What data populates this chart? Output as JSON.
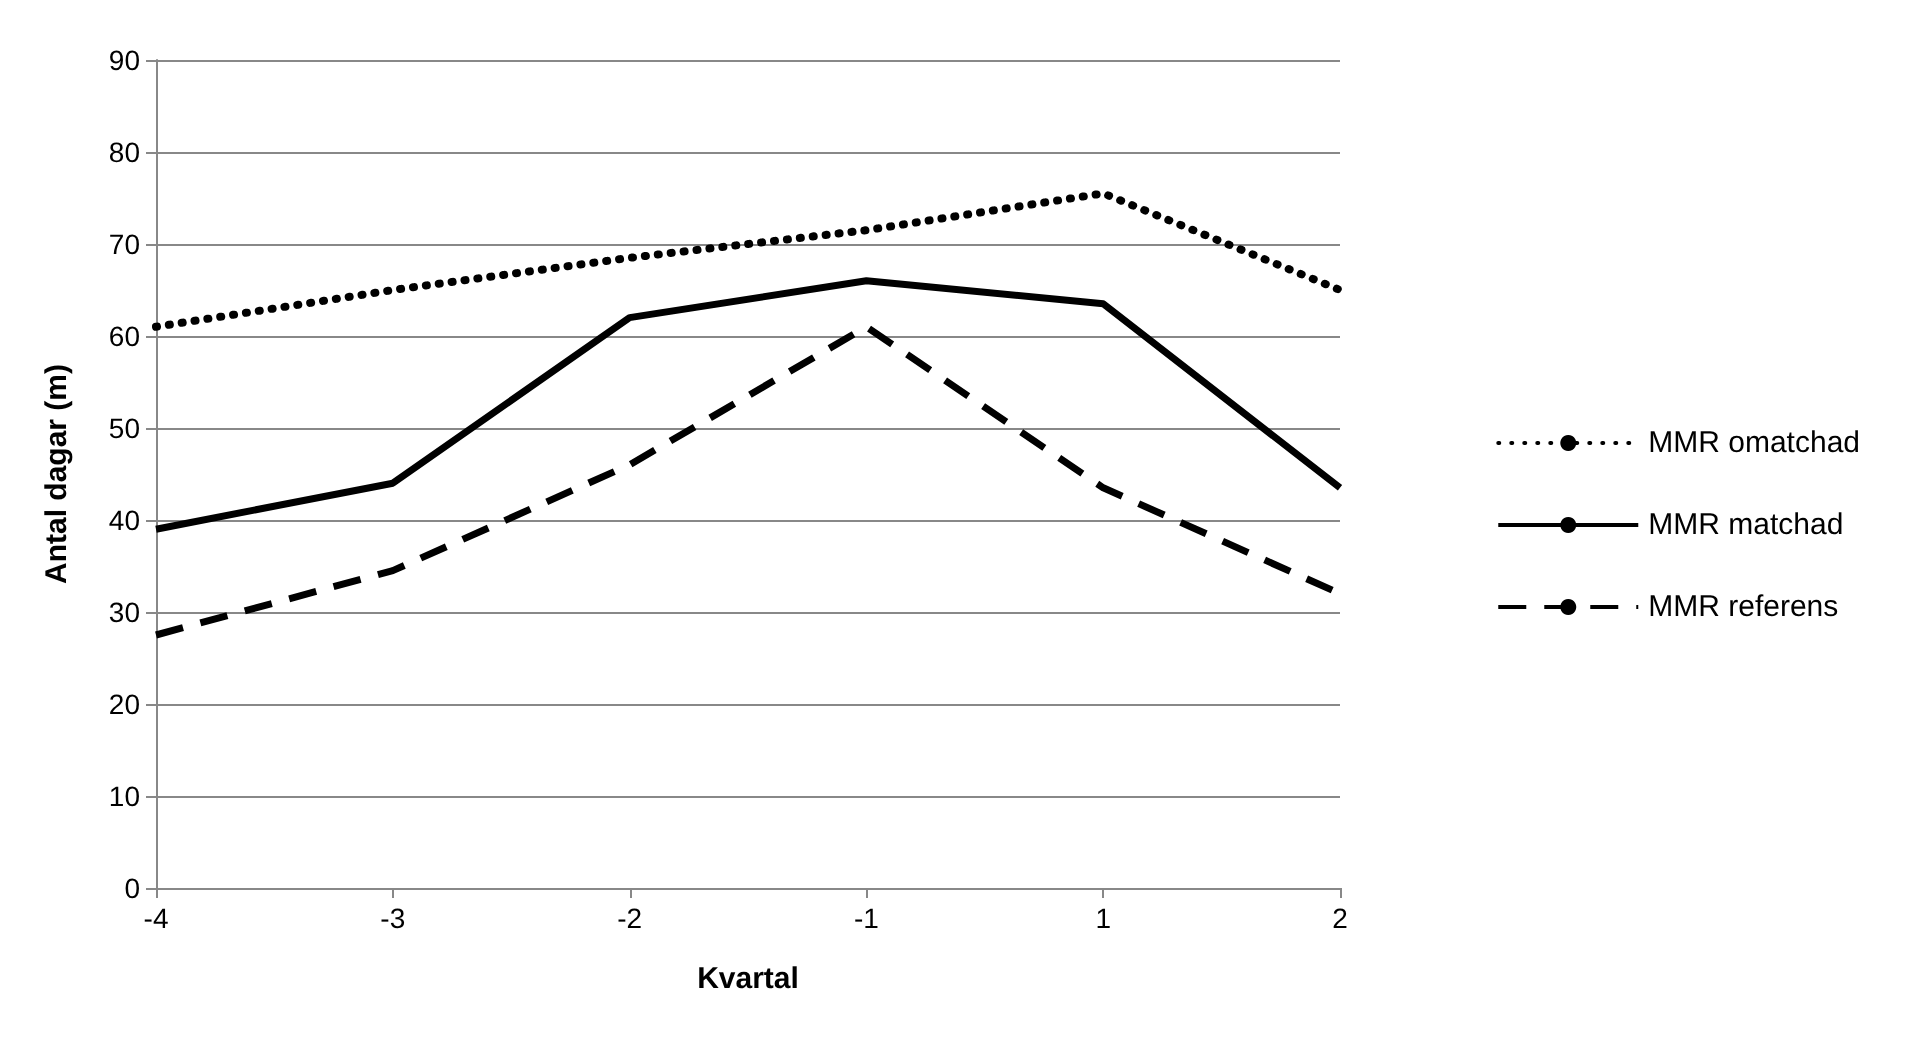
{
  "chart_data": {
    "type": "line",
    "xlabel": "Kvartal",
    "ylabel": "Antal dagar (m)",
    "categories": [
      "-4",
      "-3",
      "-2",
      "-1",
      "1",
      "2"
    ],
    "ylim": [
      0,
      90
    ],
    "yticks": [
      0,
      10,
      20,
      30,
      40,
      50,
      60,
      70,
      80,
      90
    ],
    "grid": "y",
    "legend": "right",
    "marker": "none",
    "series": [
      {
        "name": "MMR omatchad",
        "color": "#000000",
        "line_style": "dotted",
        "values": [
          61,
          65,
          68.5,
          71.5,
          75.5,
          65
        ]
      },
      {
        "name": "MMR matchad",
        "color": "#000000",
        "line_style": "solid",
        "values": [
          39,
          44,
          62,
          66,
          63.5,
          43.5
        ]
      },
      {
        "name": "MMR referens",
        "color": "#000000",
        "line_style": "dashed",
        "values": [
          27.5,
          34.5,
          46,
          61,
          43.5,
          32
        ]
      }
    ]
  }
}
